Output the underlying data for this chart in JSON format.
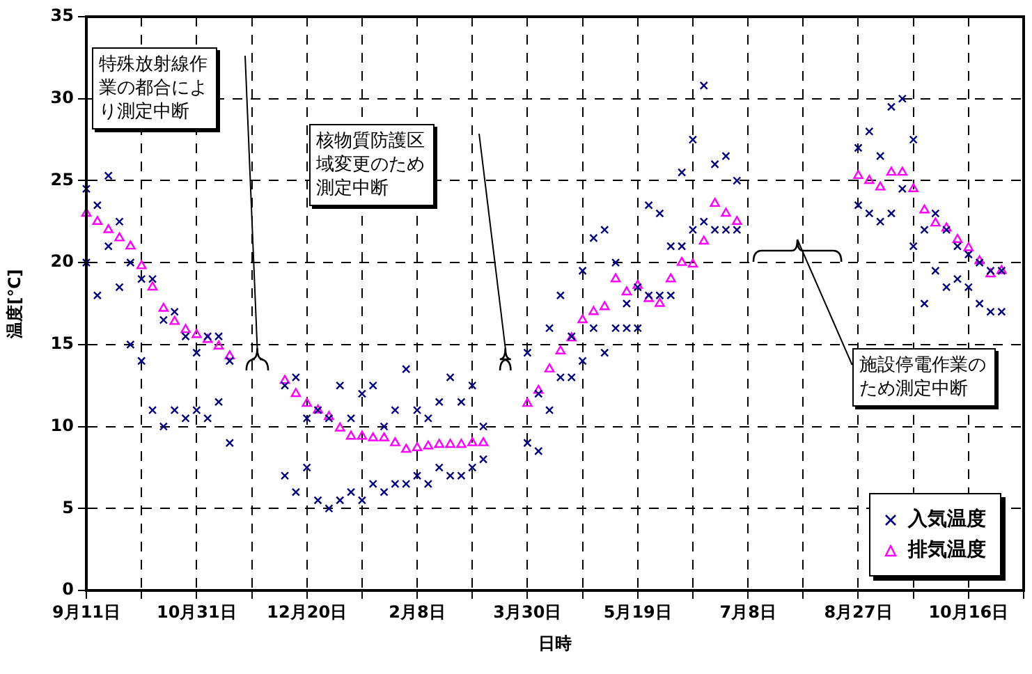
{
  "chart_data": {
    "type": "scatter",
    "xlabel": "日時",
    "ylabel": "温度[℃]",
    "categories": [
      "9月11日",
      null,
      null,
      null,
      null,
      null,
      null,
      null,
      null,
      null,
      "10月31日",
      null,
      null,
      null,
      null,
      null,
      null,
      null,
      null,
      null,
      "12月20日",
      null,
      null,
      null,
      null,
      null,
      null,
      null,
      null,
      null,
      "2月8日",
      null,
      null,
      null,
      null,
      null,
      null,
      null,
      null,
      null,
      "3月30日",
      null,
      null,
      null,
      null,
      null,
      null,
      null,
      null,
      null,
      "5月19日",
      null,
      null,
      null,
      null,
      null,
      null,
      null,
      null,
      null,
      "7月8日",
      null,
      null,
      null,
      null,
      null,
      null,
      null,
      null,
      null,
      "8月27日",
      null,
      null,
      null,
      null,
      null,
      null,
      null,
      null,
      null,
      "10月16日",
      null,
      null,
      null,
      null,
      null
    ],
    "ylim": [
      0,
      35
    ],
    "yticks": [
      0,
      5,
      10,
      15,
      20,
      25,
      30,
      35
    ],
    "grid": true,
    "legend": "bottom right",
    "annotations": [
      "特殊放射線作業の都合により測定中断",
      "核物質防護区域変更のため測定中断",
      "施設停電作業のため測定中断"
    ],
    "series": [
      {
        "name": "入気温度",
        "color": "#000080",
        "marker": "cross",
        "values": [
          24.5,
          23.5,
          25.3,
          22.5,
          20,
          19,
          19,
          16.5,
          17,
          15.5,
          14.5,
          15.5,
          15.5,
          14,
          null,
          null,
          null,
          null,
          12.5,
          13,
          10.5,
          11,
          10.5,
          12.5,
          10.5,
          12,
          12.5,
          10,
          11,
          13.5,
          11,
          10.5,
          11.5,
          13,
          11.5,
          12.5,
          10,
          null,
          null,
          null,
          14.5,
          12,
          16,
          18,
          15.5,
          19.5,
          21.5,
          22,
          20,
          17.5,
          18.5,
          23.5,
          23,
          21,
          25.5,
          27.5,
          30.8,
          26,
          26.5,
          25,
          null,
          null,
          null,
          null,
          null,
          null,
          null,
          null,
          null,
          null,
          27,
          28,
          26.5,
          29.5,
          30,
          27.5,
          22,
          23,
          22,
          21,
          20.5,
          20,
          19.5,
          19.5,
          null,
          null
        ]
      },
      {
        "color": "#000080",
        "marker": "cross",
        "values": [
          20,
          18,
          21,
          18.5,
          15,
          14,
          11,
          10,
          11,
          10.5,
          11,
          10.5,
          11.5,
          9,
          null,
          null,
          null,
          null,
          7,
          6,
          7.5,
          5.5,
          5,
          5.5,
          6,
          5.5,
          6.5,
          6,
          6.5,
          6.5,
          7,
          6.5,
          7.5,
          7,
          7,
          7.5,
          8,
          null,
          null,
          null,
          9,
          8.5,
          11,
          13,
          13,
          14,
          16,
          14.5,
          16,
          16,
          16,
          18,
          18,
          18,
          21,
          22,
          22.5,
          22,
          22,
          22,
          null,
          null,
          null,
          null,
          null,
          null,
          null,
          null,
          null,
          null,
          23.5,
          23,
          22.5,
          23,
          24.5,
          21,
          17.5,
          19.5,
          18.5,
          19,
          18.5,
          17.5,
          17,
          17,
          null,
          null
        ]
      },
      {
        "name": "排気温度",
        "color": "#ff00ff",
        "marker": "triangle",
        "values": [
          23,
          22.5,
          22,
          21.5,
          21,
          19.8,
          18.5,
          17.2,
          16.4,
          15.9,
          15.6,
          15.3,
          14.9,
          14.3,
          null,
          null,
          null,
          null,
          12.8,
          12,
          11.4,
          11,
          10.6,
          9.9,
          9.4,
          9.4,
          9.3,
          9.3,
          9,
          8.6,
          8.7,
          8.8,
          8.9,
          8.9,
          8.9,
          9,
          9,
          null,
          null,
          null,
          11.4,
          12.2,
          13.5,
          14.6,
          15.4,
          16.5,
          17,
          17.3,
          19,
          18.2,
          18.6,
          17.8,
          17.5,
          19,
          20,
          19.9,
          21.3,
          23.6,
          23,
          22.5,
          null,
          null,
          null,
          null,
          null,
          null,
          null,
          null,
          null,
          null,
          25.3,
          25,
          24.6,
          25.5,
          25.5,
          24.5,
          23.2,
          22.4,
          22.1,
          21.4,
          20.9,
          20.1,
          19.3,
          19.5,
          null,
          null
        ]
      }
    ]
  }
}
